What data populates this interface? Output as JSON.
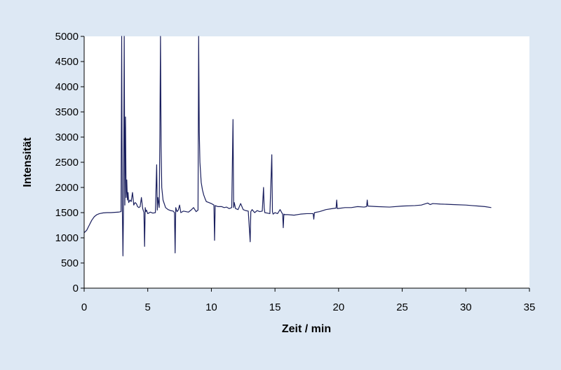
{
  "chart_data": {
    "type": "line",
    "title": "",
    "xlabel": "Zeit / min",
    "ylabel": "Intensität",
    "xlim": [
      0,
      35
    ],
    "ylim": [
      0,
      5000
    ],
    "x_ticks": [
      0,
      5,
      10,
      15,
      20,
      25,
      30,
      35
    ],
    "y_ticks": [
      0,
      500,
      1000,
      1500,
      2000,
      2500,
      3000,
      3500,
      4000,
      4500,
      5000
    ],
    "grid": false,
    "legend": "none",
    "colors": {
      "background": "#dde8f4",
      "plot_area": "#ffffff",
      "line": "#1a1f5e"
    },
    "series": [
      {
        "x": [
          0.0,
          0.2,
          0.4,
          0.6,
          0.8,
          1.0,
          1.2,
          1.5,
          1.8,
          2.1,
          2.4,
          2.7,
          2.9,
          2.95,
          3.0,
          3.05,
          3.1,
          3.15,
          3.2,
          3.25,
          3.3,
          3.35,
          3.4,
          3.45,
          3.5,
          3.6,
          3.7,
          3.8,
          3.9,
          4.0,
          4.1,
          4.2,
          4.3,
          4.4,
          4.5,
          4.6,
          4.7,
          4.75,
          4.8,
          4.85,
          4.9,
          5.0,
          5.2,
          5.4,
          5.6,
          5.7,
          5.75,
          5.8,
          5.9,
          5.95,
          6.0,
          6.05,
          6.1,
          6.2,
          6.4,
          6.6,
          6.8,
          7.0,
          7.1,
          7.15,
          7.2,
          7.3,
          7.4,
          7.5,
          7.6,
          7.8,
          8.0,
          8.2,
          8.4,
          8.6,
          8.8,
          8.95,
          9.0,
          9.05,
          9.1,
          9.2,
          9.3,
          9.4,
          9.5,
          9.6,
          9.8,
          10.0,
          10.2,
          10.25,
          10.3,
          10.5,
          10.8,
          11.0,
          11.2,
          11.4,
          11.6,
          11.7,
          11.75,
          11.8,
          11.9,
          12.1,
          12.3,
          12.5,
          12.7,
          12.9,
          13.05,
          13.1,
          13.2,
          13.4,
          13.6,
          13.8,
          14.0,
          14.1,
          14.15,
          14.2,
          14.4,
          14.6,
          14.75,
          14.8,
          14.85,
          15.0,
          15.2,
          15.4,
          15.6,
          15.65,
          15.7,
          15.8,
          16.0,
          16.5,
          17.0,
          17.5,
          18.0,
          18.05,
          18.1,
          18.5,
          19.0,
          19.5,
          19.8,
          19.85,
          19.9,
          20.5,
          21.0,
          21.5,
          22.0,
          22.2,
          22.25,
          22.3,
          23.0,
          24.0,
          25.0,
          26.0,
          26.5,
          27.0,
          27.2,
          27.4,
          28.0,
          29.0,
          30.0,
          30.5,
          31.0,
          31.5,
          32.0
        ],
        "y": [
          1100,
          1150,
          1250,
          1350,
          1420,
          1460,
          1480,
          1495,
          1500,
          1500,
          1505,
          1510,
          1520,
          5000,
          1600,
          640,
          1700,
          5000,
          1650,
          3400,
          1800,
          2150,
          1750,
          1900,
          1700,
          1750,
          1720,
          1900,
          1650,
          1700,
          1680,
          1620,
          1600,
          1620,
          1800,
          1580,
          1500,
          830,
          1600,
          1520,
          1550,
          1480,
          1510,
          1490,
          1500,
          2450,
          1550,
          1800,
          1600,
          3000,
          5000,
          2800,
          2000,
          1750,
          1600,
          1560,
          1540,
          1530,
          1500,
          700,
          1600,
          1520,
          1550,
          1650,
          1500,
          1530,
          1520,
          1510,
          1550,
          1600,
          1520,
          1550,
          5000,
          3100,
          2500,
          2100,
          1950,
          1850,
          1780,
          1720,
          1700,
          1680,
          1650,
          950,
          1640,
          1620,
          1620,
          1600,
          1610,
          1580,
          1600,
          3350,
          1600,
          1700,
          1580,
          1560,
          1680,
          1560,
          1540,
          1530,
          920,
          1520,
          1560,
          1500,
          1540,
          1520,
          1530,
          2000,
          1600,
          1500,
          1490,
          1480,
          2650,
          1520,
          1470,
          1500,
          1480,
          1560,
          1470,
          1200,
          1470,
          1460,
          1460,
          1450,
          1470,
          1480,
          1480,
          1370,
          1500,
          1520,
          1560,
          1580,
          1590,
          1750,
          1580,
          1600,
          1600,
          1620,
          1610,
          1620,
          1750,
          1630,
          1620,
          1610,
          1630,
          1640,
          1650,
          1690,
          1660,
          1680,
          1670,
          1660,
          1650,
          1640,
          1630,
          1620,
          1600
        ]
      }
    ]
  }
}
